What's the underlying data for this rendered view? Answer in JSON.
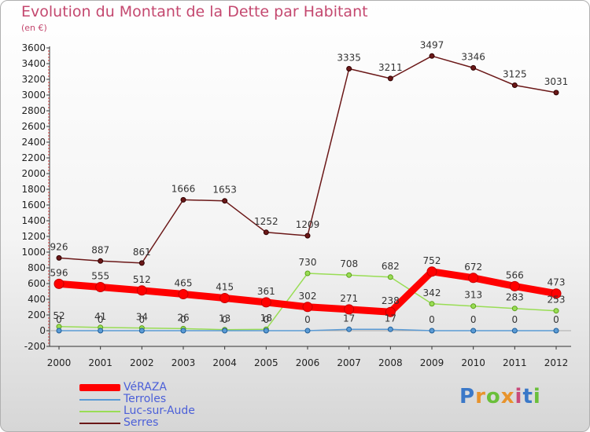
{
  "header": {
    "title": "Evolution du Montant de la Dette par Habitant",
    "subtitle": "(en €)"
  },
  "logo": {
    "text": "Proxiti",
    "colors": [
      "#3a78c8",
      "#e8932c",
      "#6abf3a",
      "#e8932c",
      "#c94a7a",
      "#3a78c8",
      "#6abf3a"
    ]
  },
  "chart_data": {
    "type": "line",
    "title": "Evolution du Montant de la Dette par Habitant",
    "subtitle": "(en €)",
    "xlabel": "",
    "ylabel": "",
    "x": [
      "2000",
      "2001",
      "2002",
      "2003",
      "2004",
      "2005",
      "2006",
      "2007",
      "2008",
      "2009",
      "2010",
      "2011",
      "2012"
    ],
    "ylim": [
      -200,
      3600
    ],
    "yticks": [
      -200,
      0,
      200,
      400,
      600,
      800,
      1000,
      1200,
      1400,
      1600,
      1800,
      2000,
      2200,
      2400,
      2600,
      2800,
      3000,
      3200,
      3400,
      3600
    ],
    "grid": false,
    "legend_position": "bottom-left",
    "series": [
      {
        "name": "Serres",
        "color": "#6b1818",
        "values": [
          926,
          887,
          861,
          1666,
          1653,
          1252,
          1209,
          3335,
          3211,
          3497,
          3346,
          3125,
          3031
        ]
      },
      {
        "name": "Luc-sur-Aude",
        "color": "#99dd55",
        "values": [
          52,
          41,
          34,
          26,
          13,
          18,
          730,
          708,
          682,
          342,
          313,
          283,
          253
        ]
      },
      {
        "name": "Terroles",
        "color": "#5b9bd5",
        "values": [
          0,
          0,
          0,
          0,
          0,
          0,
          0,
          17,
          17,
          0,
          0,
          0,
          0
        ]
      },
      {
        "name": "VéRAZA",
        "color": "#ff0000",
        "values": [
          596,
          555,
          512,
          465,
          415,
          361,
          302,
          271,
          238,
          752,
          672,
          566,
          473
        ]
      }
    ],
    "legend": [
      "VéRAZA",
      "Terroles",
      "Luc-sur-Aude",
      "Serres"
    ]
  }
}
